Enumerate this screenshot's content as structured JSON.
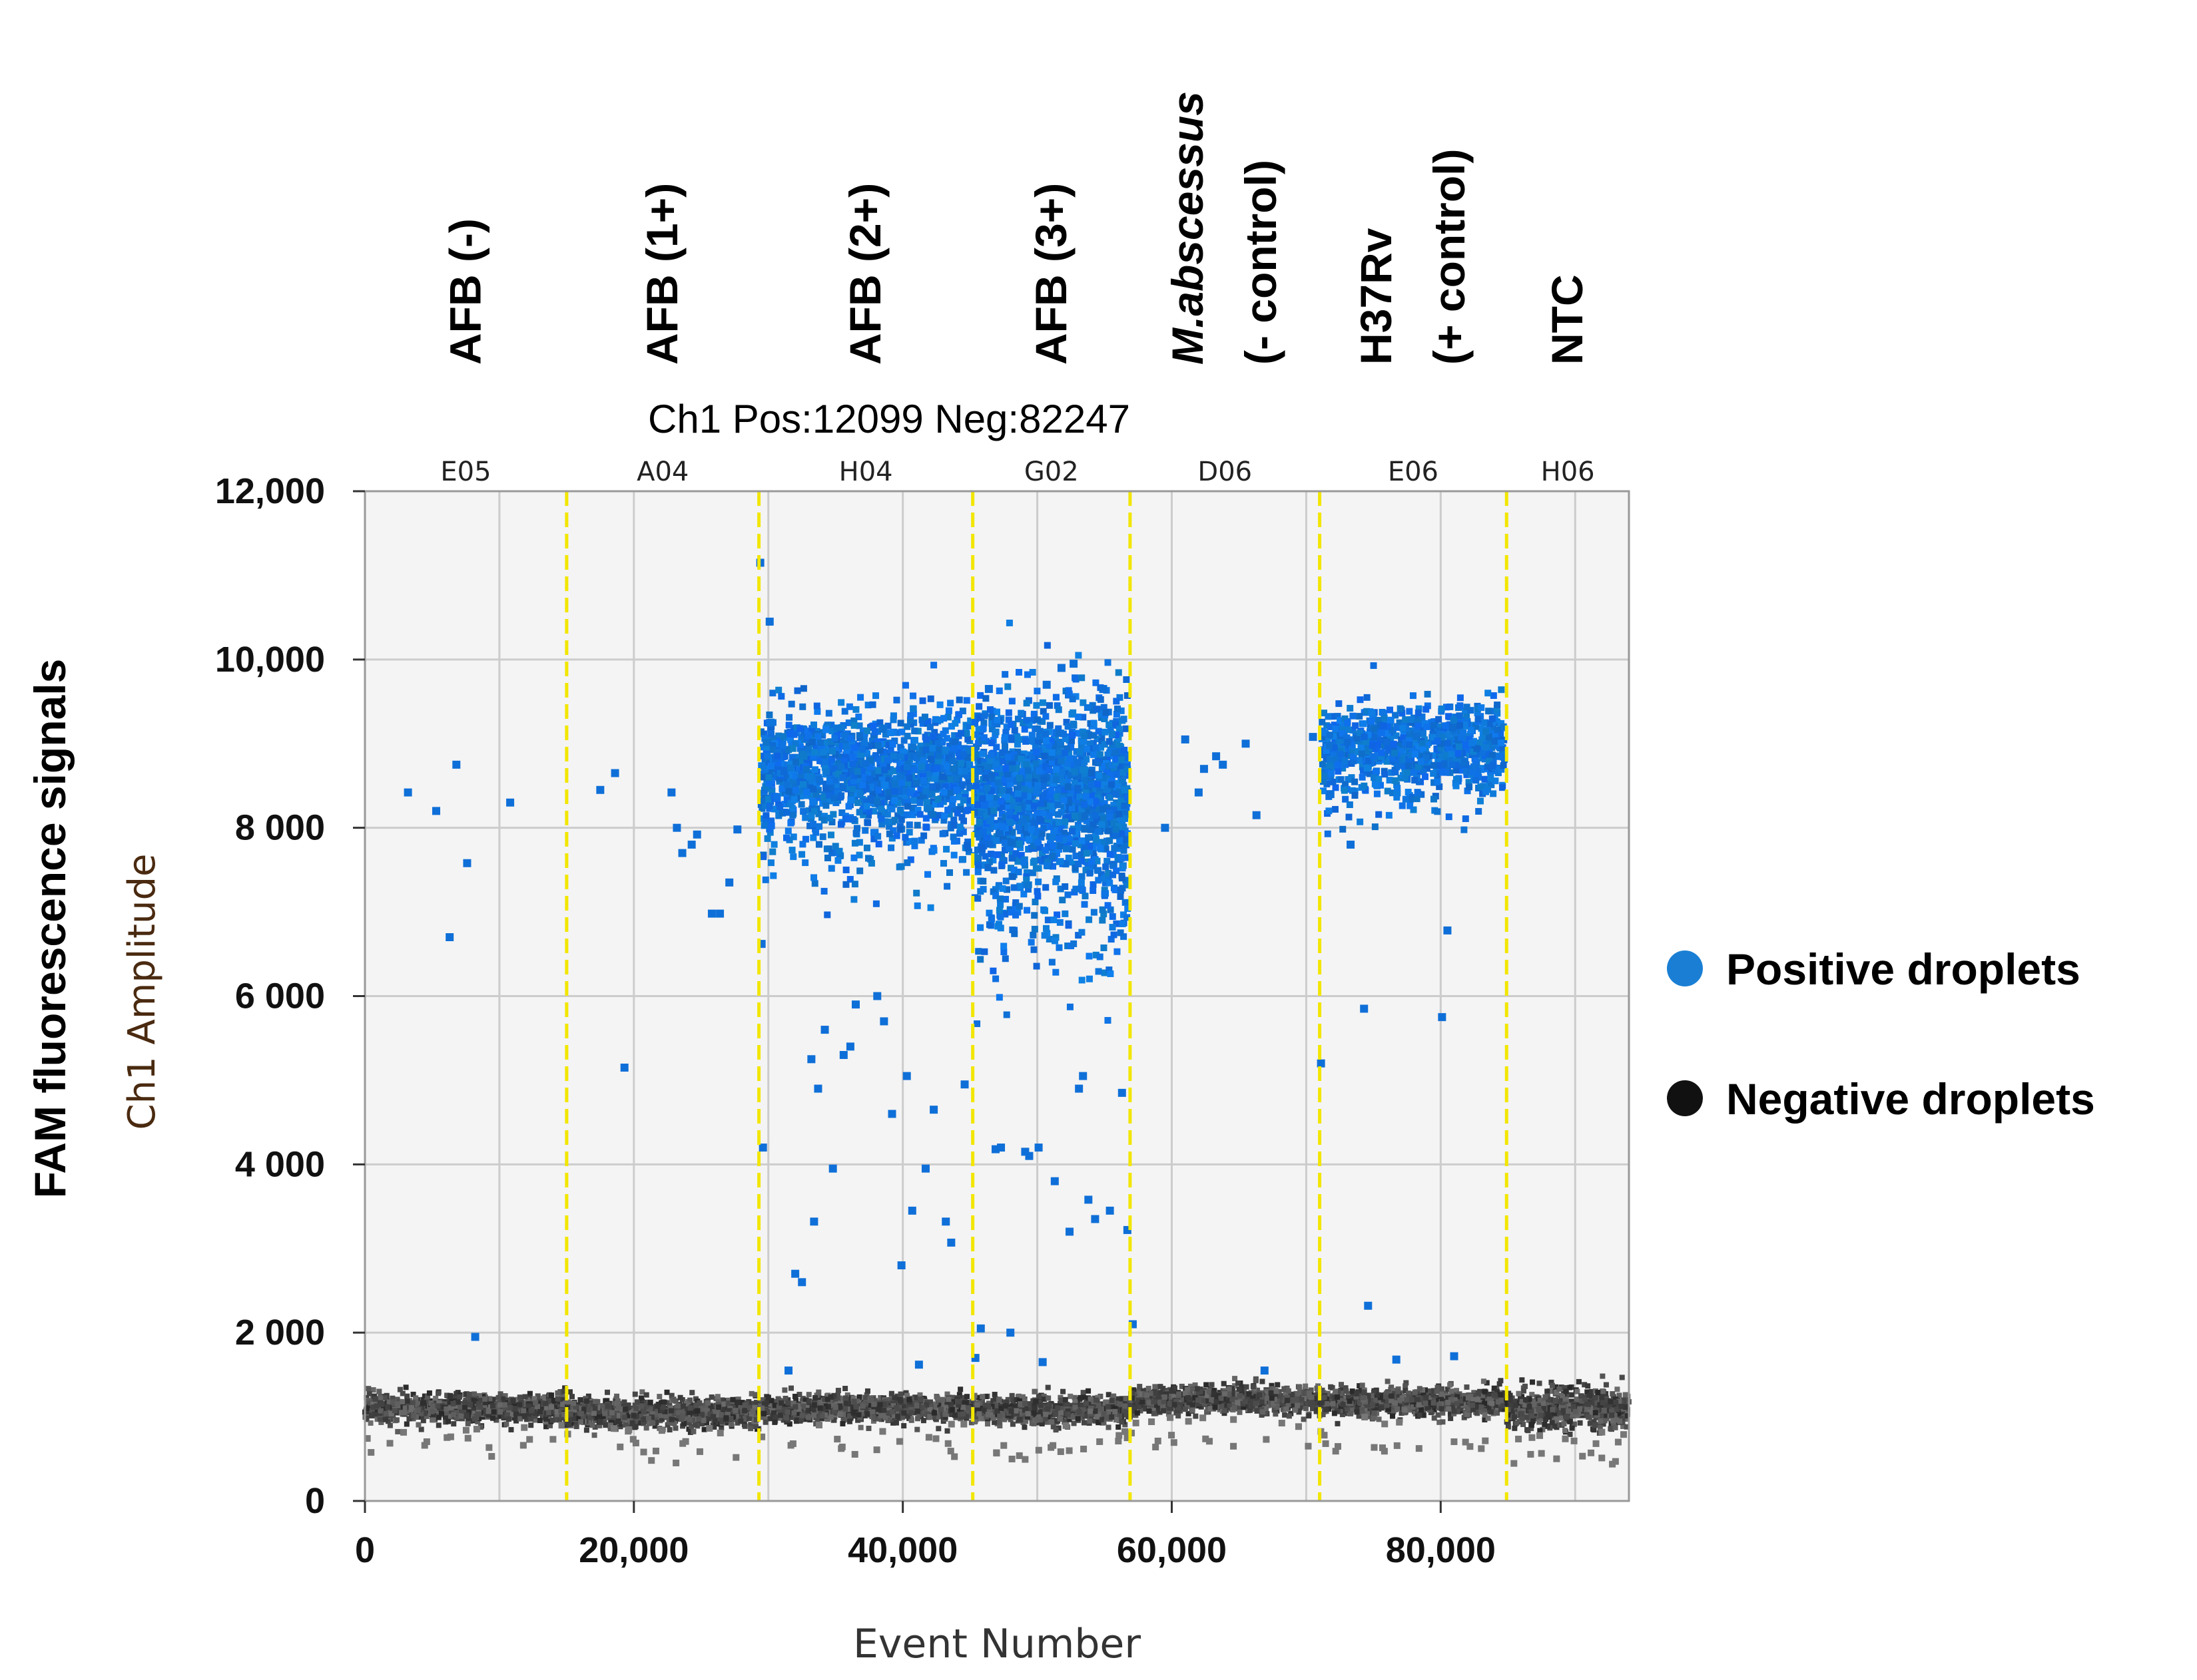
{
  "chart_data": {
    "type": "scatter",
    "title": "Ch1 Pos:12099 Neg:82247",
    "xlabel": "Event Number",
    "ylabel_inner": "Ch1  Amplitude",
    "ylabel_outer": "FAM fluorescence signals",
    "xlim": [
      0,
      94000
    ],
    "ylim": [
      0,
      12000
    ],
    "x_ticks": [
      {
        "value": 0,
        "label": "0"
      },
      {
        "value": 20000,
        "label": "20,000"
      },
      {
        "value": 40000,
        "label": "40,000"
      },
      {
        "value": 60000,
        "label": "60,000"
      },
      {
        "value": 80000,
        "label": "80,000"
      }
    ],
    "y_ticks": [
      {
        "value": 0,
        "label": "0"
      },
      {
        "value": 2000,
        "label": "2 000"
      },
      {
        "value": 4000,
        "label": "4 000"
      },
      {
        "value": 6000,
        "label": "6 000"
      },
      {
        "value": 8000,
        "label": "8 000"
      },
      {
        "value": 10000,
        "label": "10,000"
      },
      {
        "value": 12000,
        "label": "12,000"
      }
    ],
    "wells": [
      {
        "well": "E05",
        "sample": [
          "AFB (-)"
        ],
        "x_start": 0,
        "x_end": 15000,
        "neg_level": 1100,
        "pos_level": null,
        "pos_spread": 0,
        "pos_count": 0
      },
      {
        "well": "A04",
        "sample": [
          "AFB (1+)"
        ],
        "x_start": 15000,
        "x_end": 29300,
        "neg_level": 1050,
        "pos_level": null,
        "pos_spread": 0,
        "pos_count": 0
      },
      {
        "well": "H04",
        "sample": [
          "AFB (2+)"
        ],
        "x_start": 29300,
        "x_end": 45200,
        "neg_level": 1100,
        "pos_level": 8700,
        "pos_spread": 320,
        "pos_count": 1500
      },
      {
        "well": "G02",
        "sample": [
          "AFB (3+)"
        ],
        "x_start": 45200,
        "x_end": 56900,
        "neg_level": 1080,
        "pos_level": 8450,
        "pos_spread": 520,
        "pos_count": 1700
      },
      {
        "well": "D06",
        "sample": [
          "M.abscessus",
          "(- control)"
        ],
        "x_start": 56900,
        "x_end": 71000,
        "neg_level": 1200,
        "pos_level": null,
        "pos_spread": 0,
        "pos_count": 0
      },
      {
        "well": "E06",
        "sample": [
          "H37Rv",
          "(+ control)"
        ],
        "x_start": 71000,
        "x_end": 84900,
        "neg_level": 1180,
        "pos_level": 9000,
        "pos_spread": 230,
        "pos_count": 900
      },
      {
        "well": "H06",
        "sample": [
          "NTC"
        ],
        "x_start": 84900,
        "x_end": 94000,
        "neg_level": 1100,
        "pos_level": null,
        "pos_spread": 0,
        "pos_count": 0
      }
    ],
    "well_boundaries": [
      15000,
      29300,
      45200,
      56900,
      71000,
      84900
    ],
    "scattered_positive_points": [
      [
        3200,
        8420
      ],
      [
        5300,
        8200
      ],
      [
        6300,
        6700
      ],
      [
        6800,
        8750
      ],
      [
        7600,
        7580
      ],
      [
        8200,
        1950
      ],
      [
        10800,
        8300
      ],
      [
        17500,
        8450
      ],
      [
        18600,
        8650
      ],
      [
        19300,
        5150
      ],
      [
        22800,
        8420
      ],
      [
        23200,
        8000
      ],
      [
        23600,
        7700
      ],
      [
        24300,
        7800
      ],
      [
        24700,
        7920
      ],
      [
        25800,
        6980
      ],
      [
        26400,
        6980
      ],
      [
        27100,
        7350
      ],
      [
        27700,
        7980
      ],
      [
        29400,
        11150
      ],
      [
        29500,
        6620
      ],
      [
        29600,
        4200
      ],
      [
        30100,
        10450
      ],
      [
        31500,
        1550
      ],
      [
        32000,
        2700
      ],
      [
        32500,
        2600
      ],
      [
        33200,
        5250
      ],
      [
        33400,
        3320
      ],
      [
        33700,
        4900
      ],
      [
        34200,
        5600
      ],
      [
        34800,
        3950
      ],
      [
        35600,
        5300
      ],
      [
        36100,
        5400
      ],
      [
        36500,
        5900
      ],
      [
        38100,
        6000
      ],
      [
        38600,
        5700
      ],
      [
        39200,
        4600
      ],
      [
        39900,
        2800
      ],
      [
        40300,
        5050
      ],
      [
        40700,
        3450
      ],
      [
        41200,
        1620
      ],
      [
        41700,
        3950
      ],
      [
        42300,
        4650
      ],
      [
        43200,
        3320
      ],
      [
        43600,
        3070
      ],
      [
        44600,
        4950
      ],
      [
        45400,
        1700
      ],
      [
        45800,
        2050
      ],
      [
        46400,
        9650
      ],
      [
        46900,
        4180
      ],
      [
        47300,
        4200
      ],
      [
        48000,
        2000
      ],
      [
        49100,
        4150
      ],
      [
        49400,
        4100
      ],
      [
        50100,
        4200
      ],
      [
        50400,
        1650
      ],
      [
        50700,
        9700
      ],
      [
        51300,
        3800
      ],
      [
        51800,
        9900
      ],
      [
        52400,
        3200
      ],
      [
        52700,
        9950
      ],
      [
        53100,
        4900
      ],
      [
        53400,
        5050
      ],
      [
        53800,
        3580
      ],
      [
        54300,
        3350
      ],
      [
        54900,
        9650
      ],
      [
        55400,
        3450
      ],
      [
        56300,
        4850
      ],
      [
        56700,
        3220
      ],
      [
        57100,
        2100
      ],
      [
        59500,
        8000
      ],
      [
        61000,
        9050
      ],
      [
        62000,
        8420
      ],
      [
        62400,
        8700
      ],
      [
        63300,
        8850
      ],
      [
        63800,
        8750
      ],
      [
        65500,
        9000
      ],
      [
        66300,
        8150
      ],
      [
        66900,
        1550
      ],
      [
        70500,
        9080
      ],
      [
        71100,
        5200
      ],
      [
        71800,
        8400
      ],
      [
        73300,
        7800
      ],
      [
        74300,
        5850
      ],
      [
        74600,
        2320
      ],
      [
        76700,
        1680
      ],
      [
        80100,
        5750
      ],
      [
        80500,
        6780
      ],
      [
        81000,
        1720
      ]
    ],
    "legend": [
      {
        "label": "Positive droplets",
        "color": "#1a7fd4"
      },
      {
        "label": "Negative droplets",
        "color": "#111111"
      }
    ]
  },
  "colors": {
    "positive": "#0f6fd8",
    "negative": "#3a3a3a",
    "boundary": "#f2e600",
    "grid": "#cccccc",
    "plot_bg": "#f4f4f4"
  }
}
